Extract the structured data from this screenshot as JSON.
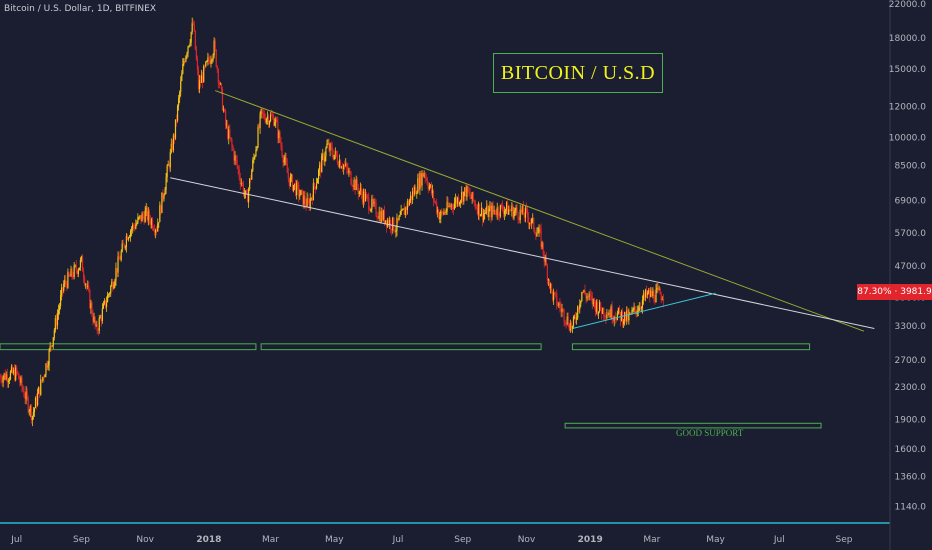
{
  "header": {
    "symbol_line": "Bitcoin / U.S. Dollar, 1D, BITFINEX"
  },
  "overlay": {
    "title": "BITCOIN / U.S.D",
    "annotation": "GOOD SUPPORT"
  },
  "price_badge": {
    "change": "87.30%",
    "separator": "·",
    "price": "3981.9",
    "color": "#e0252c"
  },
  "colors": {
    "background": "#1b1e30",
    "up_candle": "#f5c518",
    "down_candle": "#e0252c",
    "support_lines": "#4caf50",
    "upper_trend": "#9aa830",
    "lower_trend": "#d0d4dc",
    "wedge_line": "#3cc4d6",
    "axis_text": "#b2b5be"
  },
  "chart_data": {
    "type": "line",
    "scale": "log",
    "ylim": [
      1040,
      22500
    ],
    "y_ticks": [
      22000.0,
      18000.0,
      15000.0,
      12000.0,
      10000.0,
      8500.0,
      6900.0,
      5700.0,
      4700.0,
      3900.0,
      3300.0,
      2700.0,
      2300.0,
      1900.0,
      1600.0,
      1360.0,
      1140.0
    ],
    "x_labels": [
      "Jul",
      "Sep",
      "Nov",
      "2018",
      "Mar",
      "May",
      "Jul",
      "Sep",
      "Nov",
      "2019",
      "Mar",
      "May",
      "Jul",
      "Sep"
    ],
    "series": [
      {
        "x": [
          "2017-06-15",
          "2017-07-01",
          "2017-07-16",
          "2017-08-01",
          "2017-08-15",
          "2017-09-01",
          "2017-09-15",
          "2017-10-01",
          "2017-10-15",
          "2017-11-01",
          "2017-11-12",
          "2017-11-29",
          "2017-12-08",
          "2017-12-17",
          "2017-12-22",
          "2018-01-06",
          "2018-01-17",
          "2018-02-06",
          "2018-02-20",
          "2018-03-05",
          "2018-03-18",
          "2018-04-06",
          "2018-04-24",
          "2018-05-10",
          "2018-05-25",
          "2018-06-10",
          "2018-06-29",
          "2018-07-26",
          "2018-08-10",
          "2018-09-04",
          "2018-09-20",
          "2018-10-10",
          "2018-11-01",
          "2018-11-14",
          "2018-11-25",
          "2018-12-15",
          "2018-12-24",
          "2019-01-10",
          "2019-02-07",
          "2019-02-24",
          "2019-03-12"
        ],
        "values": [
          2450,
          2500,
          1950,
          2800,
          4200,
          4800,
          3200,
          4300,
          5700,
          6400,
          5900,
          10200,
          15800,
          19500,
          13500,
          17100,
          10800,
          6900,
          11400,
          11200,
          7900,
          6700,
          9500,
          8500,
          7300,
          6500,
          5900,
          8200,
          6300,
          7300,
          6400,
          6600,
          6350,
          5600,
          4000,
          3250,
          4050,
          3650,
          3450,
          3950,
          3980
        ]
      }
    ],
    "trendlines": [
      {
        "name": "",
        "from": [
          "2018-01-07",
          13200
        ],
        "to": [
          "2019-09-20",
          3200
        ]
      },
      {
        "name": "",
        "from": [
          "2017-11-25",
          7900
        ],
        "to": [
          "2019-09-30",
          3250
        ]
      },
      {
        "name": "",
        "from": [
          "2018-12-15",
          3250
        ],
        "to": [
          "2019-05-01",
          4000
        ]
      }
    ],
    "support_zones": [
      {
        "from": "2017-06-15",
        "to": "2018-02-15",
        "low": 2870,
        "high": 2970
      },
      {
        "from": "2018-02-20",
        "to": "2018-11-15",
        "low": 2870,
        "high": 2970
      },
      {
        "from": "2018-12-15",
        "to": "2019-07-30",
        "low": 2870,
        "high": 2970
      },
      {
        "from": "2018-12-08",
        "to": "2019-08-10",
        "low": 1810,
        "high": 1860
      }
    ]
  }
}
